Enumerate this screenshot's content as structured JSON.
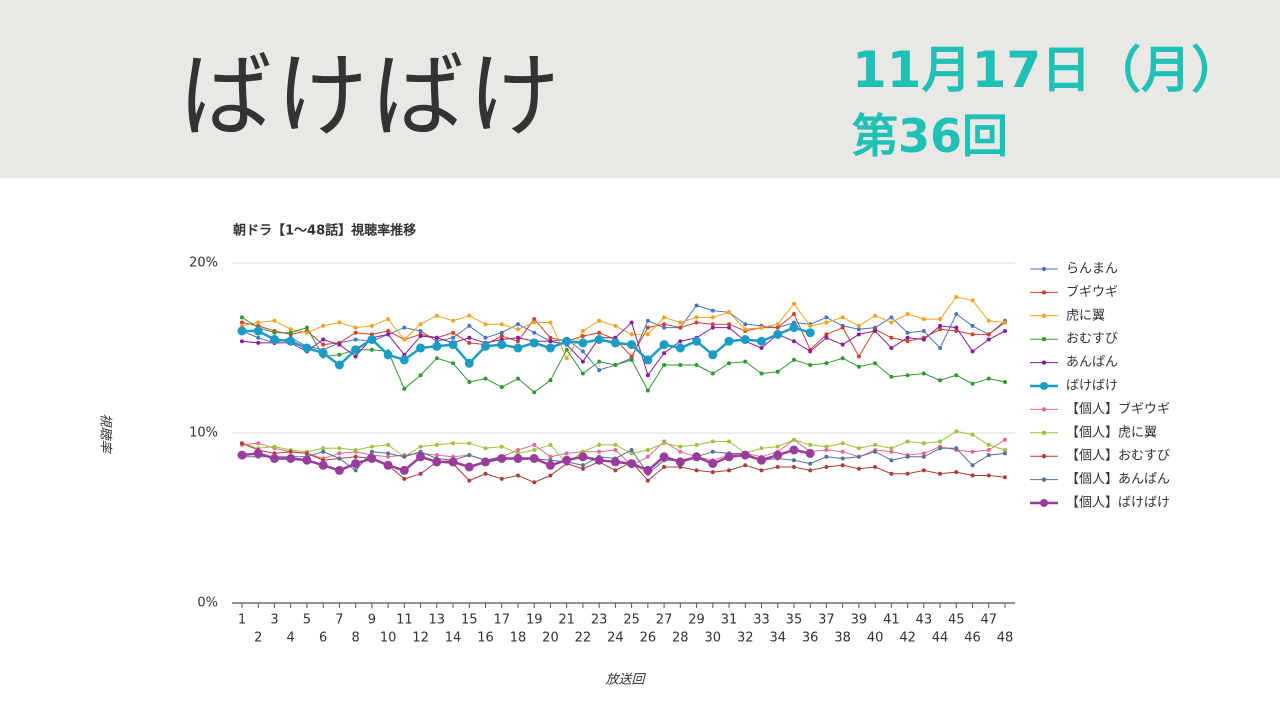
{
  "header": {
    "title": "ばけばけ",
    "date": "11月17日（月）",
    "episode": "第36回"
  },
  "chart_data": {
    "type": "line",
    "title": "朝ドラ【1〜48話】視聴率推移",
    "x_label": "放送回",
    "y_label": "視聴率",
    "categories": [
      1,
      2,
      3,
      4,
      5,
      6,
      7,
      8,
      9,
      10,
      11,
      12,
      13,
      14,
      15,
      16,
      17,
      18,
      19,
      20,
      21,
      22,
      23,
      24,
      25,
      26,
      27,
      28,
      29,
      30,
      31,
      32,
      33,
      34,
      35,
      36,
      37,
      38,
      39,
      40,
      41,
      42,
      43,
      44,
      45,
      46,
      47,
      48
    ],
    "ylim": [
      0,
      20
    ],
    "yticks": [
      {
        "value": 0,
        "label": "0%"
      },
      {
        "value": 10,
        "label": "10%"
      },
      {
        "value": 20,
        "label": "20%"
      }
    ],
    "grid": true,
    "legend": "right",
    "series": [
      {
        "name": "らんまん",
        "color": "#4a74c9",
        "values": [
          16.0,
          15.6,
          15.3,
          15.6,
          15.1,
          14.9,
          15.3,
          15.5,
          15.4,
          15.8,
          16.2,
          16.0,
          15.4,
          15.6,
          16.3,
          15.6,
          15.9,
          16.4,
          15.9,
          15.4,
          15.5,
          14.8,
          13.7,
          14.0,
          14.4,
          16.6,
          16.2,
          16.2,
          17.5,
          17.2,
          17.1,
          16.4,
          16.3,
          16.2,
          16.5,
          16.4,
          16.8,
          16.3,
          16.1,
          16.2,
          16.8,
          15.9,
          16.0,
          15.0,
          17.0,
          16.3,
          15.8,
          16.6
        ]
      },
      {
        "name": "ブギウギ",
        "color": "#d6402c",
        "values": [
          16.5,
          16.3,
          16.0,
          15.8,
          16.0,
          15.2,
          15.3,
          15.9,
          15.8,
          16.0,
          15.5,
          15.8,
          15.6,
          15.9,
          15.3,
          15.2,
          15.7,
          15.4,
          16.7,
          15.6,
          15.4,
          15.7,
          15.9,
          15.5,
          14.5,
          16.2,
          16.4,
          16.2,
          16.5,
          16.4,
          16.4,
          16.0,
          16.2,
          16.2,
          17.0,
          14.9,
          15.8,
          16.2,
          14.5,
          16.1,
          15.6,
          15.4,
          15.6,
          16.1,
          16.0,
          15.8,
          15.8,
          16.5
        ]
      },
      {
        "name": "虎に翼",
        "color": "#f2a21e",
        "values": [
          16.3,
          16.5,
          16.6,
          16.1,
          15.9,
          16.3,
          16.5,
          16.2,
          16.3,
          16.7,
          15.5,
          16.4,
          16.9,
          16.6,
          16.9,
          16.4,
          16.4,
          16.1,
          16.5,
          16.5,
          14.4,
          16.0,
          16.6,
          16.3,
          15.8,
          15.8,
          16.8,
          16.5,
          16.8,
          16.8,
          17.1,
          16.1,
          16.2,
          16.4,
          17.6,
          16.3,
          16.5,
          16.8,
          16.3,
          16.9,
          16.5,
          17.0,
          16.7,
          16.7,
          18.0,
          17.8,
          16.6,
          16.5
        ]
      },
      {
        "name": "おむすび",
        "color": "#2e9a30",
        "values": [
          16.8,
          16.2,
          15.9,
          15.9,
          16.2,
          14.5,
          14.6,
          14.9,
          14.9,
          14.8,
          12.6,
          13.4,
          14.4,
          14.1,
          13.0,
          13.2,
          12.7,
          13.2,
          12.4,
          13.1,
          14.9,
          13.5,
          14.2,
          14.0,
          14.3,
          12.5,
          14.0,
          14.0,
          14.0,
          13.5,
          14.1,
          14.2,
          13.5,
          13.6,
          14.3,
          14.0,
          14.1,
          14.4,
          13.9,
          14.1,
          13.3,
          13.4,
          13.5,
          13.1,
          13.4,
          12.9,
          13.2,
          13.0
        ]
      },
      {
        "name": "あんぱん",
        "color": "#8a1c9c",
        "values": [
          15.4,
          15.3,
          15.3,
          15.3,
          14.8,
          15.5,
          15.2,
          14.5,
          15.6,
          15.8,
          14.6,
          15.7,
          15.6,
          15.3,
          15.6,
          15.3,
          15.5,
          15.6,
          15.4,
          15.4,
          15.2,
          14.2,
          15.6,
          15.6,
          16.5,
          13.4,
          14.7,
          15.4,
          15.6,
          16.2,
          16.2,
          15.4,
          15.0,
          15.8,
          15.4,
          14.8,
          15.6,
          15.2,
          15.8,
          16.0,
          15.0,
          15.6,
          15.5,
          16.3,
          16.2,
          14.8,
          15.5,
          16.0
        ]
      },
      {
        "name": "ばけばけ",
        "color": "#1b9cc4",
        "emphasis": true,
        "values": [
          16.0,
          16.0,
          15.5,
          15.4,
          15.0,
          14.7,
          14.0,
          14.9,
          15.5,
          14.6,
          14.3,
          15.0,
          15.1,
          15.2,
          14.1,
          15.1,
          15.2,
          15.0,
          15.3,
          15.0,
          15.4,
          15.3,
          15.5,
          15.3,
          15.2,
          14.3,
          15.2,
          15.0,
          15.4,
          14.6,
          15.4,
          15.5,
          15.4,
          15.8,
          16.2,
          15.9,
          null,
          null,
          null,
          null,
          null,
          null,
          null,
          null,
          null,
          null,
          null,
          null
        ]
      },
      {
        "name": "【個人】ブギウギ",
        "color": "#e86a8e",
        "values": [
          9.3,
          9.4,
          9.1,
          8.9,
          8.8,
          8.5,
          8.8,
          8.9,
          8.7,
          8.6,
          8.7,
          8.8,
          8.7,
          8.6,
          8.7,
          8.4,
          8.6,
          9.0,
          9.3,
          8.6,
          8.8,
          8.9,
          8.9,
          9.0,
          8.1,
          8.6,
          9.5,
          8.9,
          8.6,
          8.4,
          8.7,
          8.8,
          8.6,
          8.9,
          9.6,
          8.9,
          9.0,
          8.9,
          8.6,
          9.0,
          8.9,
          8.7,
          8.8,
          9.2,
          9.0,
          8.9,
          9.0,
          9.6
        ]
      },
      {
        "name": "【個人】虎に翼",
        "color": "#9cc43c",
        "values": [
          9.4,
          9.1,
          9.2,
          9.0,
          8.9,
          9.1,
          9.1,
          9.0,
          9.2,
          9.3,
          8.6,
          9.2,
          9.3,
          9.4,
          9.4,
          9.1,
          9.2,
          8.8,
          9.0,
          9.3,
          8.2,
          8.9,
          9.3,
          9.3,
          8.8,
          9.0,
          9.4,
          9.2,
          9.3,
          9.5,
          9.5,
          8.8,
          9.1,
          9.2,
          9.6,
          9.3,
          9.2,
          9.4,
          9.1,
          9.3,
          9.1,
          9.5,
          9.4,
          9.5,
          10.1,
          9.9,
          9.3,
          9.0
        ]
      },
      {
        "name": "【個人】おむすび",
        "color": "#b23c3c",
        "values": [
          9.4,
          9.0,
          8.8,
          8.9,
          8.8,
          8.4,
          8.5,
          8.6,
          8.5,
          8.1,
          7.3,
          7.6,
          8.3,
          8.2,
          7.2,
          7.6,
          7.3,
          7.5,
          7.1,
          7.5,
          8.2,
          7.9,
          8.3,
          7.8,
          8.3,
          7.2,
          8.0,
          8.0,
          7.8,
          7.7,
          7.8,
          8.1,
          7.8,
          8.0,
          8.0,
          7.8,
          8.0,
          8.1,
          7.9,
          8.0,
          7.6,
          7.6,
          7.8,
          7.6,
          7.7,
          7.5,
          7.5,
          7.4
        ]
      },
      {
        "name": "【個人】あんぱん",
        "color": "#5a7092",
        "values": [
          8.6,
          8.6,
          8.6,
          8.6,
          8.6,
          8.9,
          8.5,
          7.8,
          8.9,
          8.8,
          8.6,
          8.9,
          8.5,
          8.4,
          8.7,
          8.4,
          8.6,
          8.4,
          8.5,
          8.4,
          8.3,
          8.1,
          8.6,
          8.5,
          9.0,
          7.6,
          8.4,
          8.4,
          8.6,
          8.9,
          8.8,
          8.8,
          8.4,
          8.5,
          8.4,
          8.2,
          8.6,
          8.5,
          8.6,
          8.9,
          8.4,
          8.6,
          8.6,
          9.1,
          9.1,
          8.1,
          8.7,
          8.8
        ]
      },
      {
        "name": "【個人】ばけばけ",
        "color": "#9a3c9c",
        "emphasis": true,
        "values": [
          8.7,
          8.8,
          8.5,
          8.5,
          8.4,
          8.1,
          7.8,
          8.2,
          8.5,
          8.1,
          7.8,
          8.6,
          8.3,
          8.3,
          8.0,
          8.3,
          8.5,
          8.5,
          8.5,
          8.1,
          8.4,
          8.6,
          8.4,
          8.3,
          8.2,
          7.8,
          8.6,
          8.3,
          8.6,
          8.2,
          8.6,
          8.7,
          8.4,
          8.7,
          9.0,
          8.8,
          null,
          null,
          null,
          null,
          null,
          null,
          null,
          null,
          null,
          null,
          null,
          null
        ]
      }
    ]
  }
}
